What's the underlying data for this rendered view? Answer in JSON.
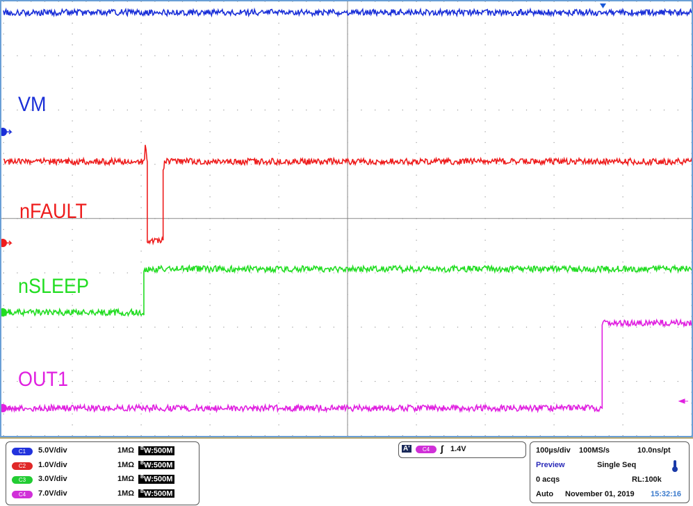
{
  "chart_data": {
    "type": "line",
    "title": "",
    "xlabel": "",
    "ylabel": "",
    "x_unit": "µs",
    "xlim": [
      0,
      1000
    ],
    "grid": true,
    "legend": "inline-left",
    "series": [
      {
        "name": "VM",
        "channel": "C1",
        "color": "#1a2fd8",
        "unit": "V",
        "points": [
          [
            0,
            11
          ],
          [
            1000,
            11
          ]
        ]
      },
      {
        "name": "nFAULT",
        "channel": "C2",
        "color": "#ee1c1c",
        "unit": "V",
        "points": [
          [
            0,
            1.5
          ],
          [
            205,
            1.5
          ],
          [
            206,
            1.8
          ],
          [
            209,
            1.5
          ],
          [
            209,
            0.05
          ],
          [
            232,
            0.05
          ],
          [
            232,
            1.3
          ],
          [
            234,
            1.5
          ],
          [
            1000,
            1.5
          ]
        ]
      },
      {
        "name": "nSLEEP",
        "channel": "C3",
        "color": "#22dd22",
        "unit": "V",
        "points": [
          [
            0,
            0
          ],
          [
            204,
            0
          ],
          [
            204,
            2.4
          ],
          [
            1000,
            2.4
          ]
        ]
      },
      {
        "name": "OUT1",
        "channel": "C4",
        "color": "#e020e0",
        "unit": "V",
        "points": [
          [
            0,
            0
          ],
          [
            870,
            0
          ],
          [
            870,
            11
          ],
          [
            1000,
            11
          ]
        ]
      }
    ]
  },
  "channels": [
    {
      "id": "C1",
      "scale": "5.0V/div",
      "impedance": "1MΩ",
      "bw": "W:500M",
      "bw_prefix": "B",
      "color": "#2233dd"
    },
    {
      "id": "C2",
      "scale": "1.0V/div",
      "impedance": "1MΩ",
      "bw": "W:500M",
      "bw_prefix": "B",
      "color": "#e02828"
    },
    {
      "id": "C3",
      "scale": "3.0V/div",
      "impedance": "1MΩ",
      "bw": "W:500M",
      "bw_prefix": "B",
      "color": "#22cc33"
    },
    {
      "id": "C4",
      "scale": "7.0V/div",
      "impedance": "1MΩ",
      "bw": "W:500M",
      "bw_prefix": "B",
      "color": "#d030d8"
    }
  ],
  "trigger": {
    "mode_badge": "A'",
    "source": "C4",
    "slope_icon": "rising-edge",
    "level": "1.4V"
  },
  "acquisition": {
    "timebase": "100µs/div",
    "sample_rate": "100MS/s",
    "resolution": "10.0ns/pt",
    "status": "Preview",
    "mode": "Single Seq",
    "acqs": "0 acqs",
    "record_length": "RL:100k",
    "trigger_mode": "Auto",
    "date": "November 01, 2019",
    "time": "15:32:16"
  }
}
